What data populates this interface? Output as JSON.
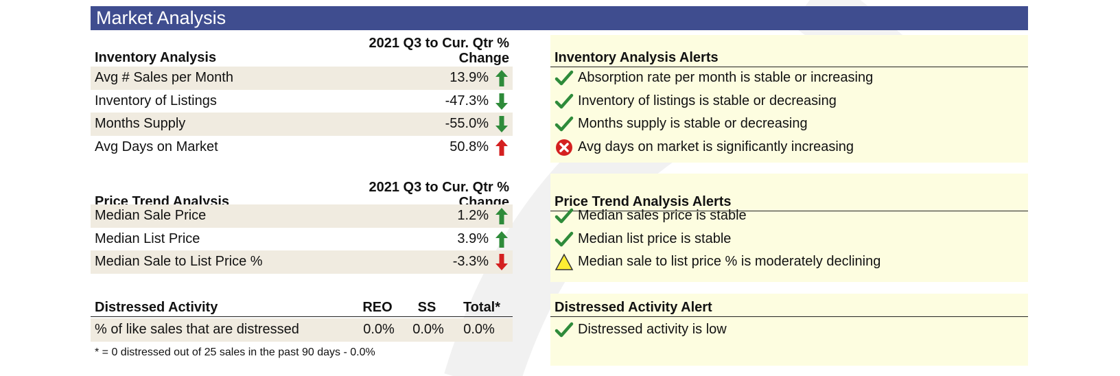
{
  "title": "Market Analysis",
  "change_header_line1": "2021 Q3 to Cur. Qtr %",
  "change_header_line2": "Change",
  "inventory": {
    "title": "Inventory Analysis",
    "rows": [
      {
        "label": "Avg # Sales per Month",
        "value": "13.9%",
        "arrow": "up",
        "color": "#2e8b3a"
      },
      {
        "label": "Inventory of Listings",
        "value": "-47.3%",
        "arrow": "down",
        "color": "#2e8b3a"
      },
      {
        "label": "Months Supply",
        "value": "-55.0%",
        "arrow": "down",
        "color": "#2e8b3a"
      },
      {
        "label": "Avg Days on Market",
        "value": "50.8%",
        "arrow": "up",
        "color": "#d42020"
      }
    ]
  },
  "price": {
    "title": "Price Trend Analysis",
    "rows": [
      {
        "label": "Median Sale Price",
        "value": "1.2%",
        "arrow": "up",
        "color": "#2e8b3a"
      },
      {
        "label": "Median List Price",
        "value": "3.9%",
        "arrow": "up",
        "color": "#2e8b3a"
      },
      {
        "label": "Median Sale to List Price %",
        "value": "-3.3%",
        "arrow": "down",
        "color": "#d42020"
      }
    ]
  },
  "distressed": {
    "title": "Distressed Activity",
    "col_reo": "REO",
    "col_ss": "SS",
    "col_total": "Total*",
    "row_label": "% of like sales that are distressed",
    "reo": "0.0%",
    "ss": "0.0%",
    "total": "0.0%",
    "footnote": "* = 0 distressed out of 25 sales in the past 90 days - 0.0%"
  },
  "inventory_alerts": {
    "title": "Inventory Analysis Alerts",
    "items": [
      {
        "text": "Absorption rate per month is stable or increasing",
        "icon": "check-icon"
      },
      {
        "text": "Inventory of listings is stable or decreasing",
        "icon": "check-icon"
      },
      {
        "text": "Months supply is stable or decreasing",
        "icon": "check-icon"
      },
      {
        "text": "Avg days on market is significantly increasing",
        "icon": "error-icon"
      }
    ]
  },
  "price_alerts": {
    "title": "Price Trend Analysis Alerts",
    "items": [
      {
        "text": "Median sales price is stable",
        "icon": "check-icon"
      },
      {
        "text": "Median list price is stable",
        "icon": "check-icon"
      },
      {
        "text": "Median sale to list price % is moderately declining",
        "icon": "warning-icon"
      }
    ]
  },
  "distressed_alert": {
    "title": "Distressed Activity Alert",
    "items": [
      {
        "text": "Distressed activity is low",
        "icon": "check-icon"
      }
    ]
  },
  "colors": {
    "header_bg": "#3f4d8f",
    "alert_bg": "#fdfde0",
    "row_shade": "#f0ebe0",
    "green": "#2e8b3a",
    "red": "#d42020"
  }
}
